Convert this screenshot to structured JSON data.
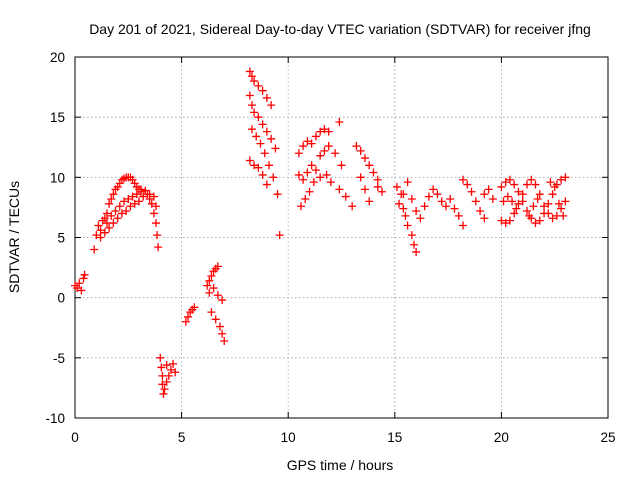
{
  "chart_data": {
    "type": "scatter",
    "title": "Day 201 of 2021, Sidereal Day-to-day VTEC variation (SDTVAR) for receiver jfng",
    "xlabel": "GPS time / hours",
    "ylabel": "SDTVAR / TECUs",
    "xlim": [
      0,
      25
    ],
    "ylim": [
      -10,
      20
    ],
    "xticks": [
      0,
      5,
      10,
      15,
      20,
      25
    ],
    "yticks": [
      -10,
      -5,
      0,
      5,
      10,
      15,
      20
    ],
    "xtick_labels": [
      "0",
      "5",
      "10",
      "15",
      "20",
      "25"
    ],
    "ytick_labels": [
      "-10",
      "-5",
      "0",
      "5",
      "10",
      "15",
      "20"
    ],
    "grid": true,
    "legend": "none",
    "marker": "plus",
    "color": "#ff0000",
    "series": [
      {
        "values": [
          [
            0.0,
            1.0
          ],
          [
            0.1,
            0.8
          ],
          [
            0.2,
            1.2
          ],
          [
            0.3,
            0.6
          ],
          [
            0.4,
            1.6
          ],
          [
            0.45,
            1.9
          ],
          [
            0.9,
            4.0
          ],
          [
            1.0,
            5.2
          ],
          [
            1.1,
            6.0
          ],
          [
            1.2,
            5.6
          ],
          [
            1.3,
            6.4
          ],
          [
            1.4,
            6.6
          ],
          [
            1.5,
            7.0
          ],
          [
            1.6,
            7.8
          ],
          [
            1.7,
            8.2
          ],
          [
            1.8,
            8.6
          ],
          [
            1.9,
            9.0
          ],
          [
            2.0,
            9.2
          ],
          [
            2.1,
            9.5
          ],
          [
            2.2,
            9.8
          ],
          [
            2.3,
            9.9
          ],
          [
            2.4,
            10.0
          ],
          [
            2.5,
            10.0
          ],
          [
            2.6,
            10.0
          ],
          [
            2.7,
            9.8
          ],
          [
            2.8,
            9.5
          ],
          [
            2.9,
            9.2
          ],
          [
            3.0,
            9.0
          ],
          [
            3.1,
            8.8
          ],
          [
            1.2,
            5.0
          ],
          [
            1.4,
            5.4
          ],
          [
            1.6,
            5.8
          ],
          [
            1.8,
            6.2
          ],
          [
            2.0,
            6.6
          ],
          [
            2.2,
            7.0
          ],
          [
            2.4,
            7.2
          ],
          [
            2.6,
            7.6
          ],
          [
            2.8,
            7.8
          ],
          [
            3.0,
            8.0
          ],
          [
            3.2,
            8.4
          ],
          [
            3.4,
            8.6
          ],
          [
            3.5,
            8.2
          ],
          [
            3.6,
            7.8
          ],
          [
            3.7,
            7.0
          ],
          [
            3.8,
            6.2
          ],
          [
            3.85,
            5.2
          ],
          [
            3.9,
            4.2
          ],
          [
            1.5,
            6.2
          ],
          [
            1.7,
            6.8
          ],
          [
            1.9,
            7.2
          ],
          [
            2.1,
            7.6
          ],
          [
            2.3,
            8.0
          ],
          [
            2.5,
            8.2
          ],
          [
            2.7,
            8.4
          ],
          [
            2.9,
            8.6
          ],
          [
            3.1,
            9.0
          ],
          [
            3.3,
            8.9
          ],
          [
            3.5,
            8.6
          ],
          [
            3.7,
            8.4
          ],
          [
            3.8,
            7.6
          ],
          [
            4.0,
            -5.0
          ],
          [
            4.05,
            -5.8
          ],
          [
            4.1,
            -6.5
          ],
          [
            4.1,
            -7.2
          ],
          [
            4.15,
            -8.0
          ],
          [
            4.2,
            -7.6
          ],
          [
            4.3,
            -7.0
          ],
          [
            4.4,
            -6.5
          ],
          [
            4.5,
            -6.0
          ],
          [
            4.6,
            -5.5
          ],
          [
            4.7,
            -6.2
          ],
          [
            4.3,
            -5.6
          ],
          [
            5.2,
            -2.0
          ],
          [
            5.3,
            -1.6
          ],
          [
            5.4,
            -1.2
          ],
          [
            5.5,
            -1.0
          ],
          [
            5.6,
            -0.8
          ],
          [
            6.2,
            1.0
          ],
          [
            6.3,
            1.4
          ],
          [
            6.4,
            1.8
          ],
          [
            6.5,
            2.2
          ],
          [
            6.6,
            2.4
          ],
          [
            6.7,
            2.6
          ],
          [
            6.3,
            0.4
          ],
          [
            6.5,
            0.8
          ],
          [
            6.7,
            0.2
          ],
          [
            6.9,
            -0.2
          ],
          [
            6.4,
            -1.2
          ],
          [
            6.6,
            -1.8
          ],
          [
            6.8,
            -2.4
          ],
          [
            6.9,
            -3.0
          ],
          [
            7.0,
            -3.6
          ],
          [
            8.2,
            18.8
          ],
          [
            8.3,
            18.4
          ],
          [
            8.4,
            18.0
          ],
          [
            8.6,
            17.6
          ],
          [
            8.8,
            17.2
          ],
          [
            9.0,
            16.6
          ],
          [
            9.2,
            16.0
          ],
          [
            8.2,
            16.8
          ],
          [
            8.3,
            16.0
          ],
          [
            8.4,
            15.4
          ],
          [
            8.6,
            15.0
          ],
          [
            8.8,
            14.4
          ],
          [
            9.0,
            13.8
          ],
          [
            9.2,
            13.2
          ],
          [
            9.4,
            12.4
          ],
          [
            8.3,
            14.0
          ],
          [
            8.5,
            13.4
          ],
          [
            8.7,
            12.8
          ],
          [
            8.9,
            12.0
          ],
          [
            9.1,
            11.0
          ],
          [
            9.3,
            10.0
          ],
          [
            9.5,
            8.6
          ],
          [
            8.2,
            11.4
          ],
          [
            8.4,
            11.0
          ],
          [
            8.6,
            10.8
          ],
          [
            8.8,
            10.2
          ],
          [
            9.0,
            9.4
          ],
          [
            9.6,
            5.2
          ],
          [
            10.5,
            12.0
          ],
          [
            10.7,
            12.6
          ],
          [
            10.9,
            13.0
          ],
          [
            11.1,
            12.8
          ],
          [
            11.3,
            13.4
          ],
          [
            11.5,
            13.8
          ],
          [
            11.7,
            14.0
          ],
          [
            11.9,
            13.8
          ],
          [
            12.4,
            14.6
          ],
          [
            10.5,
            10.2
          ],
          [
            10.7,
            9.8
          ],
          [
            10.9,
            10.4
          ],
          [
            11.1,
            11.0
          ],
          [
            11.3,
            10.6
          ],
          [
            11.5,
            11.8
          ],
          [
            11.7,
            12.2
          ],
          [
            11.9,
            12.6
          ],
          [
            12.2,
            12.0
          ],
          [
            12.5,
            11.0
          ],
          [
            10.6,
            7.6
          ],
          [
            10.8,
            8.2
          ],
          [
            11.0,
            8.8
          ],
          [
            11.2,
            9.6
          ],
          [
            11.5,
            10.0
          ],
          [
            11.8,
            10.2
          ],
          [
            12.0,
            9.6
          ],
          [
            12.4,
            9.0
          ],
          [
            12.7,
            8.4
          ],
          [
            13.0,
            7.6
          ],
          [
            13.2,
            12.6
          ],
          [
            13.4,
            12.2
          ],
          [
            13.6,
            11.6
          ],
          [
            13.8,
            11.0
          ],
          [
            14.0,
            10.4
          ],
          [
            14.2,
            9.8
          ],
          [
            13.4,
            10.0
          ],
          [
            13.6,
            9.0
          ],
          [
            13.8,
            8.0
          ],
          [
            14.2,
            9.2
          ],
          [
            14.4,
            8.8
          ],
          [
            15.1,
            9.2
          ],
          [
            15.3,
            8.6
          ],
          [
            15.4,
            7.4
          ],
          [
            15.5,
            6.8
          ],
          [
            15.6,
            6.0
          ],
          [
            15.8,
            5.2
          ],
          [
            15.9,
            4.4
          ],
          [
            16.0,
            3.8
          ],
          [
            15.2,
            7.8
          ],
          [
            15.4,
            8.6
          ],
          [
            15.6,
            9.6
          ],
          [
            15.8,
            8.2
          ],
          [
            16.0,
            7.2
          ],
          [
            16.2,
            6.6
          ],
          [
            16.4,
            7.6
          ],
          [
            16.6,
            8.4
          ],
          [
            16.8,
            9.0
          ],
          [
            17.0,
            8.6
          ],
          [
            17.2,
            8.0
          ],
          [
            17.4,
            7.6
          ],
          [
            17.6,
            8.2
          ],
          [
            17.8,
            7.4
          ],
          [
            18.0,
            6.8
          ],
          [
            18.2,
            6.0
          ],
          [
            18.2,
            9.8
          ],
          [
            18.4,
            9.4
          ],
          [
            18.6,
            8.8
          ],
          [
            18.8,
            8.0
          ],
          [
            19.0,
            7.2
          ],
          [
            19.2,
            6.6
          ],
          [
            19.2,
            8.6
          ],
          [
            19.4,
            9.0
          ],
          [
            19.6,
            8.2
          ],
          [
            20.0,
            9.2
          ],
          [
            20.2,
            9.6
          ],
          [
            20.4,
            9.8
          ],
          [
            20.6,
            9.4
          ],
          [
            20.8,
            8.8
          ],
          [
            21.0,
            8.0
          ],
          [
            21.2,
            7.2
          ],
          [
            21.4,
            6.6
          ],
          [
            21.6,
            6.2
          ],
          [
            21.8,
            6.4
          ],
          [
            22.0,
            7.0
          ],
          [
            22.2,
            7.8
          ],
          [
            22.4,
            8.6
          ],
          [
            22.6,
            9.4
          ],
          [
            22.8,
            9.8
          ],
          [
            23.0,
            10.0
          ],
          [
            20.0,
            6.4
          ],
          [
            20.2,
            6.2
          ],
          [
            20.4,
            6.4
          ],
          [
            20.6,
            7.0
          ],
          [
            20.8,
            7.8
          ],
          [
            21.0,
            8.6
          ],
          [
            21.2,
            9.4
          ],
          [
            21.4,
            9.8
          ],
          [
            21.6,
            9.4
          ],
          [
            21.8,
            8.6
          ],
          [
            22.0,
            7.6
          ],
          [
            22.2,
            7.0
          ],
          [
            22.4,
            6.6
          ],
          [
            22.6,
            6.8
          ],
          [
            22.8,
            7.4
          ],
          [
            23.0,
            8.0
          ],
          [
            20.1,
            8.0
          ],
          [
            20.3,
            8.4
          ],
          [
            20.5,
            8.0
          ],
          [
            20.7,
            7.4
          ],
          [
            21.3,
            6.8
          ],
          [
            21.5,
            7.6
          ],
          [
            21.7,
            8.2
          ],
          [
            22.3,
            9.6
          ],
          [
            22.5,
            9.2
          ],
          [
            22.7,
            7.8
          ],
          [
            22.9,
            6.8
          ]
        ]
      }
    ]
  }
}
